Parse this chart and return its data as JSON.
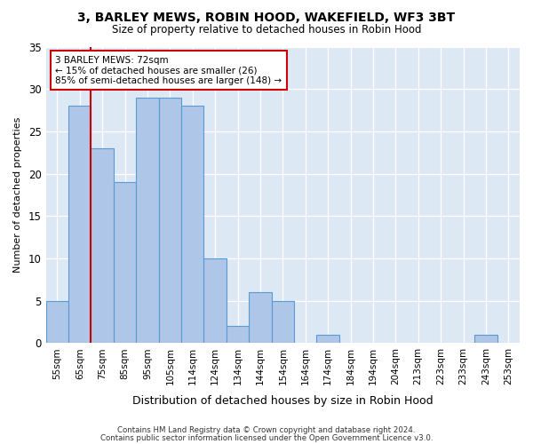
{
  "title1": "3, BARLEY MEWS, ROBIN HOOD, WAKEFIELD, WF3 3BT",
  "title2": "Size of property relative to detached houses in Robin Hood",
  "xlabel": "Distribution of detached houses by size in Robin Hood",
  "ylabel": "Number of detached properties",
  "categories": [
    "55sqm",
    "65sqm",
    "75sqm",
    "85sqm",
    "95sqm",
    "105sqm",
    "114sqm",
    "124sqm",
    "134sqm",
    "144sqm",
    "154sqm",
    "164sqm",
    "174sqm",
    "184sqm",
    "194sqm",
    "204sqm",
    "213sqm",
    "223sqm",
    "233sqm",
    "243sqm",
    "253sqm"
  ],
  "values": [
    5,
    28,
    23,
    19,
    29,
    29,
    28,
    10,
    2,
    6,
    5,
    0,
    1,
    0,
    0,
    0,
    0,
    0,
    0,
    1,
    0
  ],
  "bar_color": "#aec6e8",
  "bar_edge_color": "#5b9bd5",
  "background_color": "#dde8f5",
  "grid_color": "#ffffff",
  "subject_line_index": 2,
  "subject_label": "3 BARLEY MEWS: 72sqm",
  "annotation_line1": "← 15% of detached houses are smaller (26)",
  "annotation_line2": "85% of semi-detached houses are larger (148) →",
  "box_color": "#cc0000",
  "ylim": [
    0,
    35
  ],
  "yticks": [
    0,
    5,
    10,
    15,
    20,
    25,
    30,
    35
  ],
  "footer1": "Contains HM Land Registry data © Crown copyright and database right 2024.",
  "footer2": "Contains public sector information licensed under the Open Government Licence v3.0."
}
